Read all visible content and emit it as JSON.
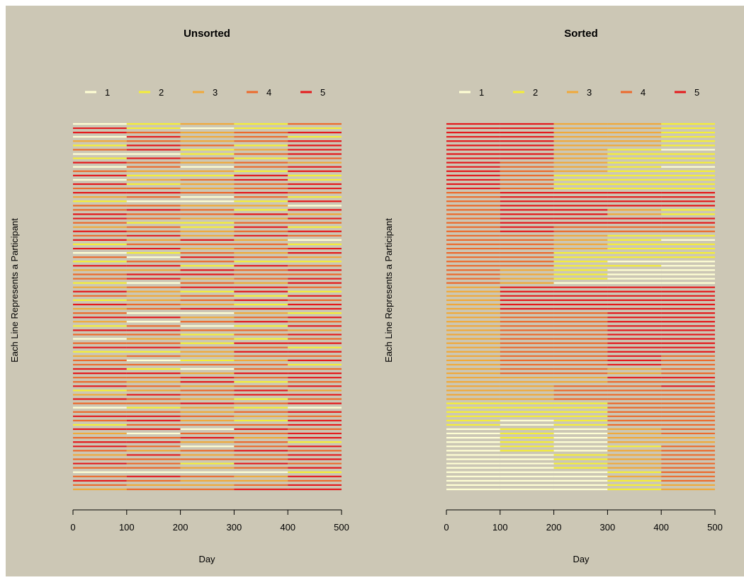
{
  "background_color": "#CCC7B5",
  "legend_colors": [
    "#FFFFD4",
    "#F5EE37",
    "#F0A93A",
    "#EC6A2C",
    "#E41A1C"
  ],
  "legend_labels": [
    "1",
    "2",
    "3",
    "4",
    "5"
  ],
  "chart_data": [
    {
      "type": "heatmap",
      "title": "Unsorted",
      "xlabel": "Day",
      "ylabel": "Each Line Represents a Participant",
      "xlim": [
        0,
        500
      ],
      "x_ticks": [
        0,
        100,
        200,
        300,
        400,
        500
      ],
      "x_tick_labels": [
        "0",
        "100",
        "200",
        "300",
        "400",
        "500"
      ],
      "period_length": 100,
      "n_participants": 86,
      "states": [
        [
          1,
          2,
          3,
          2,
          4
        ],
        [
          5,
          2,
          1,
          2,
          2
        ],
        [
          5,
          4,
          3,
          4,
          5
        ],
        [
          1,
          5,
          3,
          4,
          2
        ],
        [
          3,
          4,
          3,
          4,
          5
        ],
        [
          2,
          5,
          4,
          2,
          5
        ],
        [
          4,
          5,
          2,
          3,
          5
        ],
        [
          1,
          1,
          2,
          4,
          5
        ],
        [
          2,
          5,
          4,
          2,
          4
        ],
        [
          5,
          4,
          3,
          4,
          3
        ],
        [
          1,
          4,
          1,
          4,
          5
        ],
        [
          4,
          3,
          3,
          2,
          5
        ],
        [
          5,
          2,
          2,
          5,
          2
        ],
        [
          1,
          3,
          4,
          5,
          2
        ],
        [
          5,
          2,
          3,
          4,
          5
        ],
        [
          4,
          4,
          3,
          4,
          5
        ],
        [
          5,
          5,
          4,
          5,
          4
        ],
        [
          3,
          4,
          1,
          4,
          2
        ],
        [
          2,
          1,
          1,
          2,
          5
        ],
        [
          4,
          4,
          3,
          3,
          1
        ],
        [
          4,
          5,
          4,
          2,
          5
        ],
        [
          5,
          4,
          4,
          5,
          3
        ],
        [
          5,
          4,
          3,
          3,
          5
        ],
        [
          4,
          2,
          2,
          4,
          4
        ],
        [
          3,
          4,
          2,
          5,
          2
        ],
        [
          5,
          4,
          3,
          4,
          5
        ],
        [
          4,
          5,
          3,
          5,
          4
        ],
        [
          5,
          3,
          5,
          3,
          1
        ],
        [
          2,
          4,
          4,
          4,
          2
        ],
        [
          5,
          5,
          3,
          4,
          5
        ],
        [
          1,
          2,
          4,
          3,
          5
        ],
        [
          4,
          1,
          5,
          4,
          3
        ],
        [
          2,
          4,
          4,
          2,
          2
        ],
        [
          5,
          5,
          2,
          5,
          4
        ],
        [
          3,
          3,
          5,
          4,
          5
        ],
        [
          4,
          5,
          5,
          4,
          4
        ],
        [
          4,
          5,
          3,
          4,
          5
        ],
        [
          2,
          1,
          4,
          3,
          5
        ],
        [
          3,
          4,
          5,
          5,
          4
        ],
        [
          5,
          3,
          2,
          5,
          2
        ],
        [
          4,
          3,
          4,
          2,
          5
        ],
        [
          2,
          3,
          4,
          5,
          4
        ],
        [
          5,
          4,
          3,
          2,
          5
        ],
        [
          3,
          4,
          5,
          5,
          5
        ],
        [
          4,
          1,
          1,
          3,
          2
        ],
        [
          5,
          5,
          3,
          4,
          5
        ],
        [
          3,
          1,
          4,
          5,
          4
        ],
        [
          2,
          4,
          1,
          2,
          5
        ],
        [
          5,
          5,
          4,
          4,
          3
        ],
        [
          4,
          4,
          2,
          4,
          5
        ],
        [
          1,
          3,
          3,
          2,
          4
        ],
        [
          4,
          4,
          2,
          5,
          5
        ],
        [
          5,
          5,
          4,
          4,
          2
        ],
        [
          2,
          2,
          3,
          5,
          5
        ],
        [
          3,
          4,
          3,
          4,
          4
        ],
        [
          4,
          1,
          2,
          3,
          5
        ],
        [
          4,
          4,
          4,
          4,
          2
        ],
        [
          5,
          2,
          1,
          4,
          4
        ],
        [
          5,
          5,
          3,
          5,
          5
        ],
        [
          4,
          4,
          5,
          4,
          5
        ],
        [
          4,
          3,
          5,
          2,
          4
        ],
        [
          5,
          4,
          3,
          4,
          5
        ],
        [
          2,
          3,
          4,
          5,
          3
        ],
        [
          3,
          5,
          4,
          5,
          5
        ],
        [
          5,
          4,
          3,
          2,
          4
        ],
        [
          4,
          4,
          5,
          4,
          5
        ],
        [
          1,
          2,
          3,
          2,
          1
        ],
        [
          4,
          4,
          3,
          4,
          5
        ],
        [
          5,
          5,
          4,
          3,
          4
        ],
        [
          4,
          5,
          3,
          2,
          5
        ],
        [
          2,
          4,
          4,
          4,
          5
        ],
        [
          5,
          5,
          1,
          5,
          4
        ],
        [
          3,
          1,
          4,
          4,
          5
        ],
        [
          4,
          4,
          5,
          3,
          5
        ],
        [
          5,
          5,
          3,
          4,
          2
        ],
        [
          5,
          4,
          1,
          4,
          5
        ],
        [
          4,
          3,
          4,
          5,
          4
        ],
        [
          3,
          5,
          3,
          4,
          5
        ],
        [
          4,
          4,
          4,
          4,
          5
        ],
        [
          5,
          4,
          2,
          5,
          4
        ],
        [
          4,
          4,
          3,
          4,
          5
        ],
        [
          1,
          1,
          1,
          1,
          2
        ],
        [
          4,
          5,
          4,
          3,
          5
        ],
        [
          5,
          4,
          3,
          3,
          4
        ],
        [
          4,
          3,
          3,
          4,
          5
        ],
        [
          3,
          4,
          4,
          5,
          5
        ]
      ]
    },
    {
      "type": "heatmap",
      "title": "Sorted",
      "xlabel": "Day",
      "ylabel": "Each Line Represents a Participant",
      "xlim": [
        0,
        500
      ],
      "x_ticks": [
        0,
        100,
        200,
        300,
        400,
        500
      ],
      "x_tick_labels": [
        "0",
        "100",
        "200",
        "300",
        "400",
        "500"
      ],
      "period_length": 100,
      "n_participants": 86,
      "states": [
        [
          5,
          5,
          3,
          3,
          2
        ],
        [
          5,
          5,
          3,
          3,
          2
        ],
        [
          5,
          5,
          3,
          3,
          2
        ],
        [
          5,
          5,
          3,
          3,
          2
        ],
        [
          5,
          5,
          3,
          3,
          2
        ],
        [
          5,
          5,
          3,
          3,
          2
        ],
        [
          5,
          5,
          3,
          2,
          1
        ],
        [
          5,
          5,
          3,
          2,
          2
        ],
        [
          5,
          5,
          3,
          2,
          2
        ],
        [
          5,
          4,
          3,
          2,
          2
        ],
        [
          5,
          4,
          3,
          2,
          1
        ],
        [
          5,
          4,
          3,
          2,
          2
        ],
        [
          5,
          4,
          2,
          2,
          2
        ],
        [
          5,
          4,
          2,
          2,
          2
        ],
        [
          5,
          4,
          2,
          2,
          2
        ],
        [
          5,
          4,
          2,
          2,
          2
        ],
        [
          4,
          5,
          5,
          5,
          5
        ],
        [
          4,
          5,
          5,
          5,
          5
        ],
        [
          4,
          5,
          5,
          5,
          5
        ],
        [
          4,
          5,
          5,
          5,
          5
        ],
        [
          4,
          5,
          5,
          3,
          2
        ],
        [
          4,
          5,
          5,
          3,
          2
        ],
        [
          4,
          5,
          5,
          5,
          5
        ],
        [
          4,
          5,
          5,
          5,
          5
        ],
        [
          4,
          5,
          4,
          4,
          4
        ],
        [
          4,
          5,
          4,
          4,
          4
        ],
        [
          4,
          4,
          3,
          2,
          2
        ],
        [
          4,
          4,
          3,
          2,
          1
        ],
        [
          4,
          4,
          3,
          2,
          2
        ],
        [
          4,
          4,
          3,
          2,
          2
        ],
        [
          4,
          4,
          2,
          2,
          2
        ],
        [
          4,
          4,
          2,
          2,
          2
        ],
        [
          4,
          4,
          2,
          1,
          1
        ],
        [
          4,
          4,
          2,
          2,
          1
        ],
        [
          4,
          3,
          2,
          1,
          1
        ],
        [
          4,
          3,
          2,
          1,
          1
        ],
        [
          4,
          3,
          2,
          1,
          1
        ],
        [
          4,
          3,
          1,
          1,
          1
        ],
        [
          3,
          5,
          5,
          5,
          5
        ],
        [
          3,
          5,
          5,
          5,
          5
        ],
        [
          3,
          5,
          5,
          5,
          5
        ],
        [
          3,
          5,
          5,
          5,
          5
        ],
        [
          3,
          5,
          5,
          5,
          5
        ],
        [
          3,
          5,
          5,
          5,
          5
        ],
        [
          3,
          4,
          4,
          5,
          5
        ],
        [
          3,
          4,
          4,
          5,
          5
        ],
        [
          3,
          4,
          4,
          5,
          5
        ],
        [
          3,
          4,
          4,
          5,
          5
        ],
        [
          3,
          4,
          4,
          5,
          5
        ],
        [
          3,
          4,
          4,
          5,
          5
        ],
        [
          3,
          4,
          4,
          5,
          5
        ],
        [
          3,
          4,
          4,
          5,
          5
        ],
        [
          3,
          4,
          4,
          5,
          5
        ],
        [
          3,
          4,
          4,
          5,
          5
        ],
        [
          3,
          4,
          4,
          5,
          4
        ],
        [
          3,
          4,
          4,
          5,
          4
        ],
        [
          3,
          4,
          4,
          5,
          4
        ],
        [
          3,
          4,
          4,
          3,
          4
        ],
        [
          3,
          4,
          4,
          3,
          4
        ],
        [
          3,
          3,
          3,
          5,
          5
        ],
        [
          3,
          3,
          3,
          4,
          4
        ],
        [
          3,
          3,
          4,
          4,
          5
        ],
        [
          3,
          3,
          4,
          4,
          4
        ],
        [
          3,
          3,
          4,
          4,
          4
        ],
        [
          3,
          3,
          4,
          4,
          4
        ],
        [
          2,
          2,
          2,
          4,
          4
        ],
        [
          2,
          2,
          2,
          4,
          4
        ],
        [
          2,
          2,
          2,
          4,
          4
        ],
        [
          2,
          2,
          2,
          4,
          4
        ],
        [
          2,
          1,
          2,
          4,
          4
        ],
        [
          2,
          1,
          2,
          4,
          4
        ],
        [
          1,
          2,
          1,
          3,
          4
        ],
        [
          1,
          2,
          1,
          3,
          4
        ],
        [
          1,
          2,
          1,
          3,
          3
        ],
        [
          1,
          2,
          1,
          3,
          3
        ],
        [
          1,
          2,
          1,
          2,
          4
        ],
        [
          1,
          2,
          1,
          3,
          4
        ],
        [
          1,
          1,
          2,
          3,
          4
        ],
        [
          1,
          1,
          2,
          3,
          4
        ],
        [
          1,
          1,
          2,
          3,
          4
        ],
        [
          1,
          1,
          2,
          3,
          4
        ],
        [
          1,
          1,
          1,
          2,
          4
        ],
        [
          1,
          1,
          1,
          3,
          4
        ],
        [
          1,
          1,
          1,
          2,
          4
        ],
        [
          1,
          1,
          1,
          2,
          3
        ],
        [
          1,
          1,
          1,
          2,
          3
        ]
      ]
    }
  ]
}
